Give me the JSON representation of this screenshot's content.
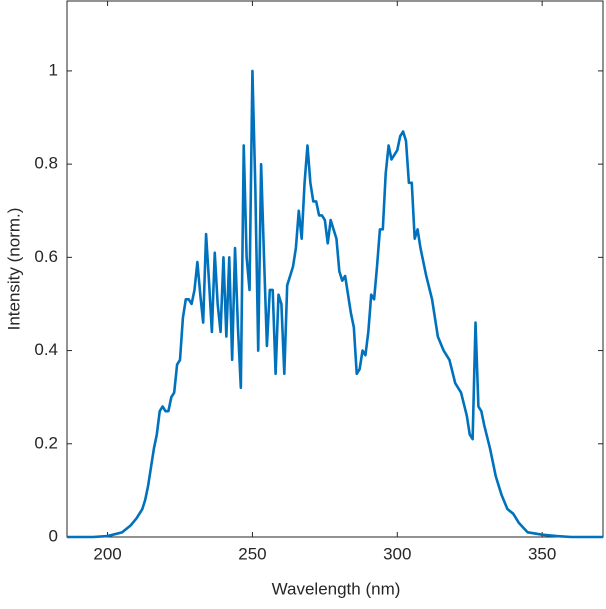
{
  "chart_data": {
    "type": "line",
    "xlabel": "Wavelength (nm)",
    "ylabel": "Intensity (norm.)",
    "x": [
      186,
      195,
      200,
      205,
      208,
      210,
      212,
      213,
      214,
      215,
      216,
      217,
      218,
      219,
      220,
      221,
      222,
      223,
      224,
      225,
      226,
      227,
      228,
      229,
      230,
      231,
      232,
      233,
      234,
      235,
      236,
      237,
      238,
      239,
      240,
      241,
      242,
      243,
      244,
      245,
      246,
      247,
      248,
      249,
      250,
      251,
      252,
      253,
      254,
      255,
      256,
      257,
      258,
      259,
      260,
      261,
      262,
      263,
      264,
      265,
      266,
      267,
      268,
      269,
      270,
      271,
      272,
      273,
      274,
      275,
      276,
      277,
      278,
      279,
      280,
      281,
      282,
      283,
      284,
      285,
      286,
      287,
      288,
      289,
      290,
      291,
      292,
      293,
      294,
      295,
      296,
      297,
      298,
      299,
      300,
      301,
      302,
      303,
      304,
      305,
      306,
      307,
      308,
      310,
      312,
      314,
      316,
      318,
      320,
      322,
      324,
      325,
      326,
      327,
      328,
      329,
      330,
      332,
      334,
      336,
      338,
      340,
      342,
      345,
      350,
      355,
      360,
      371
    ],
    "series": [
      {
        "name": "Intensity",
        "color": "#0072bd",
        "values": [
          0,
          0,
          0.002,
          0.01,
          0.025,
          0.04,
          0.06,
          0.08,
          0.11,
          0.15,
          0.19,
          0.22,
          0.27,
          0.28,
          0.27,
          0.27,
          0.3,
          0.31,
          0.37,
          0.38,
          0.47,
          0.51,
          0.51,
          0.5,
          0.53,
          0.59,
          0.52,
          0.46,
          0.65,
          0.55,
          0.44,
          0.61,
          0.5,
          0.44,
          0.6,
          0.43,
          0.6,
          0.38,
          0.62,
          0.45,
          0.32,
          0.84,
          0.6,
          0.53,
          1.0,
          0.75,
          0.4,
          0.8,
          0.6,
          0.41,
          0.53,
          0.53,
          0.35,
          0.52,
          0.5,
          0.35,
          0.54,
          0.56,
          0.58,
          0.62,
          0.7,
          0.64,
          0.76,
          0.84,
          0.76,
          0.72,
          0.72,
          0.69,
          0.69,
          0.68,
          0.63,
          0.68,
          0.66,
          0.64,
          0.57,
          0.55,
          0.56,
          0.52,
          0.48,
          0.45,
          0.35,
          0.36,
          0.4,
          0.39,
          0.44,
          0.52,
          0.51,
          0.58,
          0.66,
          0.66,
          0.78,
          0.84,
          0.81,
          0.82,
          0.83,
          0.86,
          0.87,
          0.85,
          0.76,
          0.76,
          0.64,
          0.66,
          0.62,
          0.56,
          0.51,
          0.43,
          0.4,
          0.38,
          0.33,
          0.31,
          0.26,
          0.22,
          0.21,
          0.46,
          0.28,
          0.27,
          0.24,
          0.19,
          0.13,
          0.09,
          0.06,
          0.05,
          0.03,
          0.01,
          0.005,
          0.002,
          0,
          0
        ]
      }
    ],
    "xlim": [
      186,
      371
    ],
    "xticks": [
      200,
      250,
      300,
      350
    ],
    "ylim": [
      0,
      1.15
    ],
    "yticks": [
      0,
      0.2,
      0.4,
      0.6,
      0.8,
      1
    ],
    "grid": false
  }
}
